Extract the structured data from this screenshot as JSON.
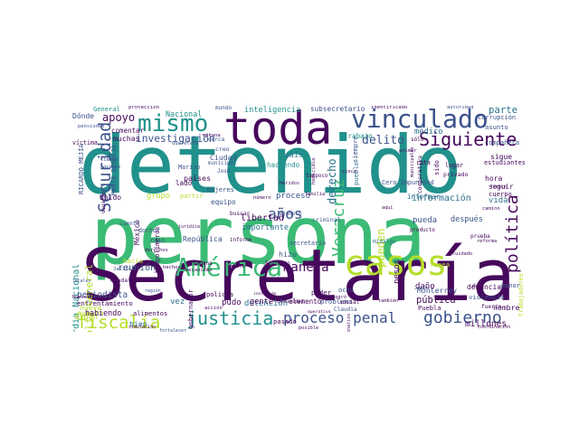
{
  "title": "word cloud",
  "palette": {
    "purple": "#46085c",
    "indigo": "#3b528b",
    "blue": "#2c728e",
    "teal": "#21918c",
    "green": "#3bbb75",
    "lime": "#b5de2b",
    "yellow": "#fde725"
  },
  "words": {
    "persona": "persona",
    "detenido": "detenido",
    "secretaria": "Secretaría",
    "toda": "toda",
    "mismo": "mismo",
    "vinculado": "vinculado",
    "casos": "casos",
    "america": "América",
    "justicia": "justicia",
    "fiscalia": "fiscalía",
    "proceso_penal": "proceso penal",
    "gobierno": "gobierno",
    "siguiente": "Siguiente",
    "seguridad": "Seguridad",
    "politica": "política",
    "veracruz": "Veracruz",
    "anos": "años",
    "manera": "manera",
    "derecho": "derecho",
    "delito": "delito",
    "investigacion": "investigación",
    "apoyo": "apoyo",
    "parte": "parte",
    "guardia_nacional": "Guardia Nacional",
    "fiscalia_general": "Fiscalía General",
    "republica": "República",
    "libertad": "libertad",
    "importante": "importante",
    "detencion": "detención",
    "proceso": "proceso",
    "informacion": "información",
    "vida": "vida",
    "pueden": "pueden",
    "pueda": "pueda",
    "despues": "después",
    "denuncia": "denuncia",
    "millones": "millones",
    "publica": "pública",
    "monterrey": "Monterrey",
    "violencia": "violencia",
    "periodista": "periodista",
    "reunion": "reunión",
    "paises": "países",
    "ciudad": "Ciudad",
    "inteligencia": "inteligencia",
    "subsecretario": "subsecretario",
    "nacional": "Nacional",
    "general": "General",
    "muchas": "muchas",
    "comentar": "comentar",
    "grupo": "grupo",
    "partir": "partir",
    "unido": "Unido",
    "hacia": "hacia",
    "algun": "algún",
    "evento": "evento",
    "enfrentamiento": "enfrentamiento",
    "habiendo": "habiendo",
    "nueva": "nueva",
    "bien": "bien",
    "vez": "vez",
    "policia": "policía",
    "gobernador": "gobernador",
    "pudo": "pudo",
    "pasado": "pasado",
    "elemento": "elemento",
    "poder": "poder",
    "problema": "problema",
    "cero_impunidad": "Cero Impunidad",
    "pesos": "pesos",
    "linea": "línea",
    "informar": "informar",
    "puebla": "Puebla",
    "dano": "daño",
    "secretario": "secretario",
    "hizo": "hizo",
    "gente": "gente",
    "haciendo": "haciendo",
    "pais": "país",
    "siempre": "siempre",
    "pueblo": "pueblo",
    "trabajo": "trabajo",
    "medico": "médico",
    "sigue": "sigue",
    "hora": "hora",
    "seguir": "seguir",
    "cuerpo": "cuerpo",
    "estudiantes": "estudiantes",
    "corrupcion": "corrupción",
    "asunto": "asunto",
    "companera": "compañera",
    "mujeres": "mujeres",
    "equipo": "equipo",
    "creo": "creo",
    "donde": "Dónde",
    "victima": "víctima",
    "ricardo_mejia": "RICARDO MEJÍA",
    "mejia_berdeja": "MEJÍA BERDEJA",
    "trabajadores": "trabajadores",
    "cooperativa": "cooperativa",
    "biopolimeros": "biopolímeros",
    "nombre": "nombre",
    "hidalgo": "Hidalgo",
    "criminal": "criminal",
    "guadalajara": "Guadalajara",
    "jalisco": "Jalisco",
    "mexico": "México",
    "alimentos": "alimentos",
    "doctor": "doctor",
    "cuenta": "cuenta",
    "caso": "caso",
    "ejercito": "Ejército",
    "claudia": "Claudia",
    "social": "social",
    "fuerza": "fuerza",
    "menor": "menor",
    "ocho": "ocho",
    "ruta": "ruta",
    "sido": "sido",
    "lugar": "lugar",
    "privado": "privado",
    "lado": "lado",
    "marino": "Marino",
    "municipal": "municipal",
    "jose": "José",
    "informe": "informe",
    "buscar": "buscar",
    "juridica": "jurídica",
    "proteccion": "protección",
    "identificado": "identificado",
    "autoridad": "autoridad",
    "mundo": "mundo",
    "pensiones": "pensiones",
    "cerca": "cerca",
    "queretaro": "Querétaro",
    "tiempo": "tiempo",
    "agravio": "agravio",
    "familia": "familia",
    "heridos": "heridos",
    "homicidio": "homicidio",
    "ejemplo": "ejemplo",
    "producto": "producto",
    "prueba": "prueba",
    "dar": "dar",
    "jesus": "Jesús",
    "comunidad": "comunidad",
    "instruido": "instruido",
    "region": "región",
    "locales": "locales",
    "simulacion": "simulación",
    "coordinacion": "coordinación",
    "primer": "primer",
    "municipales": "municipales",
    "semana": "semana",
    "hechos": "hechos",
    "solo": "sólo",
    "logro": "logró",
    "camara": "cámara",
    "operativo": "operativo",
    "fortalecer": "fortalecer",
    "posible": "posible",
    "accion": "acción",
    "manana": "mañana",
    "funcionarios": "funcionarios",
    "nuevo": "Nuevo",
    "usuario": "usuario",
    "mecanismo": "mecanismo",
    "tampoco": "tampoco",
    "cinco": "cinco",
    "aqui": "aquí",
    "camino": "camino",
    "frente": "frente",
    "reforma": "reforma",
    "numero": "número",
    "cuidado": "cuidado",
    "derechos": "derechos",
    "tambien": "también"
  }
}
